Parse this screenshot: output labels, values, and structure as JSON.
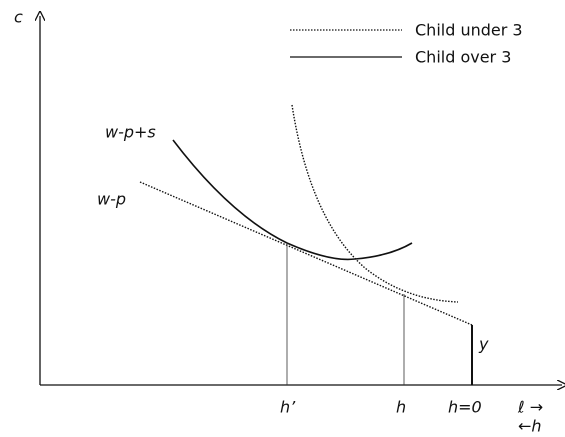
{
  "axes": {
    "y_label": "c",
    "x_label_top": "ℓ →",
    "x_label_bottom": "←h"
  },
  "legend": [
    {
      "label": "Child under 3",
      "style": "dotted"
    },
    {
      "label": "Child over 3",
      "style": "solid"
    }
  ],
  "lines": {
    "upper": "w-p+s",
    "lower": "w-p"
  },
  "points": {
    "h_prime": "h’",
    "h": "h",
    "h_zero": "h=0",
    "y": "y"
  }
}
